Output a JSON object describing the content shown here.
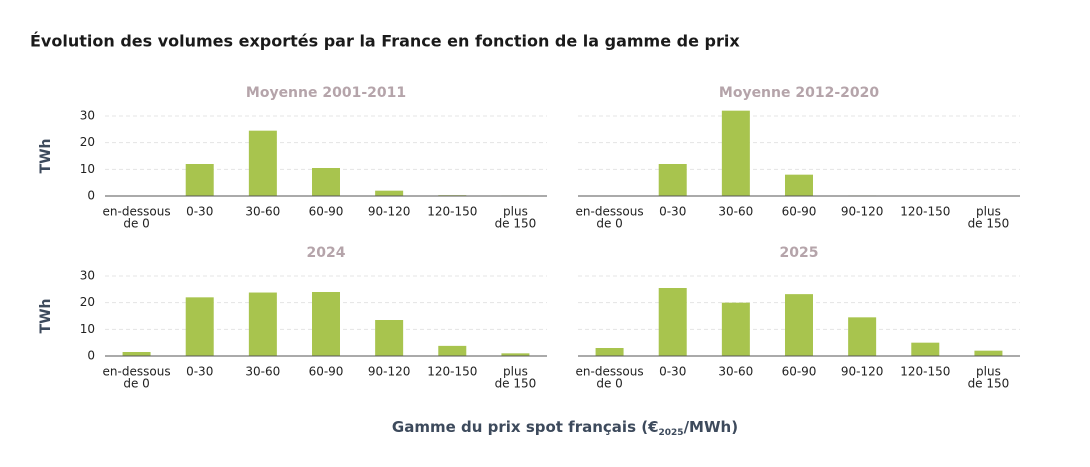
{
  "title": "Évolution des volumes exportés par la France en fonction de la gamme de prix",
  "xlabel": {
    "text": "Gamme du prix spot français (€",
    "subscript": "2025",
    "suffix": "/MWh)"
  },
  "chart_data": [
    {
      "type": "bar",
      "title": "Moyenne 2001-2011",
      "ylabel": "TWh",
      "show_ytick_labels": true,
      "categories": [
        [
          "en-dessous",
          "de 0"
        ],
        [
          "0-30"
        ],
        [
          "30-60"
        ],
        [
          "60-90"
        ],
        [
          "90-120"
        ],
        [
          "120-150"
        ],
        [
          "plus",
          "de 150"
        ]
      ],
      "values": [
        0,
        12,
        24.5,
        10.5,
        2,
        0.3,
        0.2
      ],
      "color": "#a8c44e",
      "ylim": [
        0,
        33
      ],
      "yticks": [
        0,
        10,
        20,
        30
      ],
      "grid": true
    },
    {
      "type": "bar",
      "title": "Moyenne 2012-2020",
      "show_ytick_labels": false,
      "categories": [
        [
          "en-dessous",
          "de 0"
        ],
        [
          "0-30"
        ],
        [
          "30-60"
        ],
        [
          "60-90"
        ],
        [
          "90-120"
        ],
        [
          "120-150"
        ],
        [
          "plus",
          "de 150"
        ]
      ],
      "values": [
        0,
        12,
        32,
        8,
        0.2,
        0.1,
        0.1
      ],
      "color": "#a8c44e",
      "ylim": [
        0,
        33
      ],
      "yticks": [
        0,
        10,
        20,
        30
      ],
      "grid": true
    },
    {
      "type": "bar",
      "title": "2024",
      "ylabel": "TWh",
      "show_ytick_labels": true,
      "categories": [
        [
          "en-dessous",
          "de 0"
        ],
        [
          "0-30"
        ],
        [
          "30-60"
        ],
        [
          "60-90"
        ],
        [
          "90-120"
        ],
        [
          "120-150"
        ],
        [
          "plus",
          "de 150"
        ]
      ],
      "values": [
        1.5,
        22,
        23.8,
        24,
        13.5,
        3.8,
        1
      ],
      "color": "#a8c44e",
      "ylim": [
        0,
        33
      ],
      "yticks": [
        0,
        10,
        20,
        30
      ],
      "grid": true
    },
    {
      "type": "bar",
      "title": "2025",
      "show_ytick_labels": false,
      "categories": [
        [
          "en-dessous",
          "de 0"
        ],
        [
          "0-30"
        ],
        [
          "30-60"
        ],
        [
          "60-90"
        ],
        [
          "90-120"
        ],
        [
          "120-150"
        ],
        [
          "plus",
          "de 150"
        ]
      ],
      "values": [
        3,
        25.5,
        20,
        23.2,
        14.5,
        5,
        2
      ],
      "color": "#a8c44e",
      "ylim": [
        0,
        33
      ],
      "yticks": [
        0,
        10,
        20,
        30
      ],
      "grid": true
    }
  ]
}
